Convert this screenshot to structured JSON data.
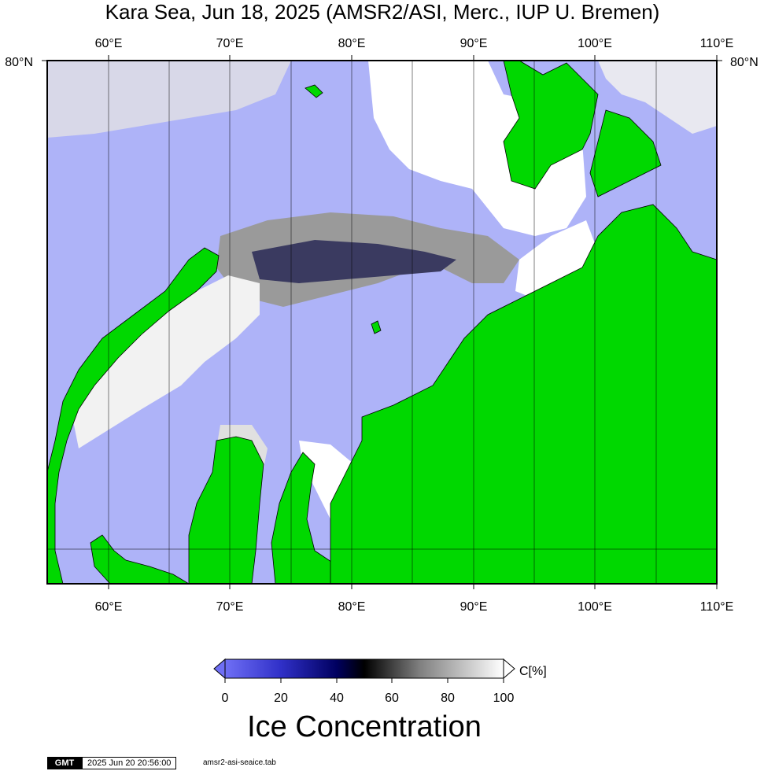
{
  "title": "Kara Sea, Jun 18, 2025 (AMSR2/ASI, Merc., IUP U. Bremen)",
  "map": {
    "lon_labels": [
      "60°E",
      "70°E",
      "80°E",
      "90°E",
      "100°E",
      "110°E"
    ],
    "lat_label_left": "80°N",
    "lat_label_right": "80°N",
    "colors": {
      "open_water": "#aeb3f8",
      "land": "#00d800",
      "ice": "#ffffff",
      "frame": "#000000"
    }
  },
  "colorbar": {
    "unit_label": "C[%]",
    "ticks": [
      "0",
      "20",
      "40",
      "60",
      "80",
      "100"
    ],
    "colors": [
      "#6f6ff5",
      "#3030c8",
      "#000060",
      "#000000",
      "#808080",
      "#ffffff"
    ]
  },
  "caption": "Ice Concentration",
  "footer": {
    "logo": "GMT",
    "timestamp": "2025 Jun 20 20:56:00",
    "filename": "amsr2-asi-seaice.tab"
  }
}
